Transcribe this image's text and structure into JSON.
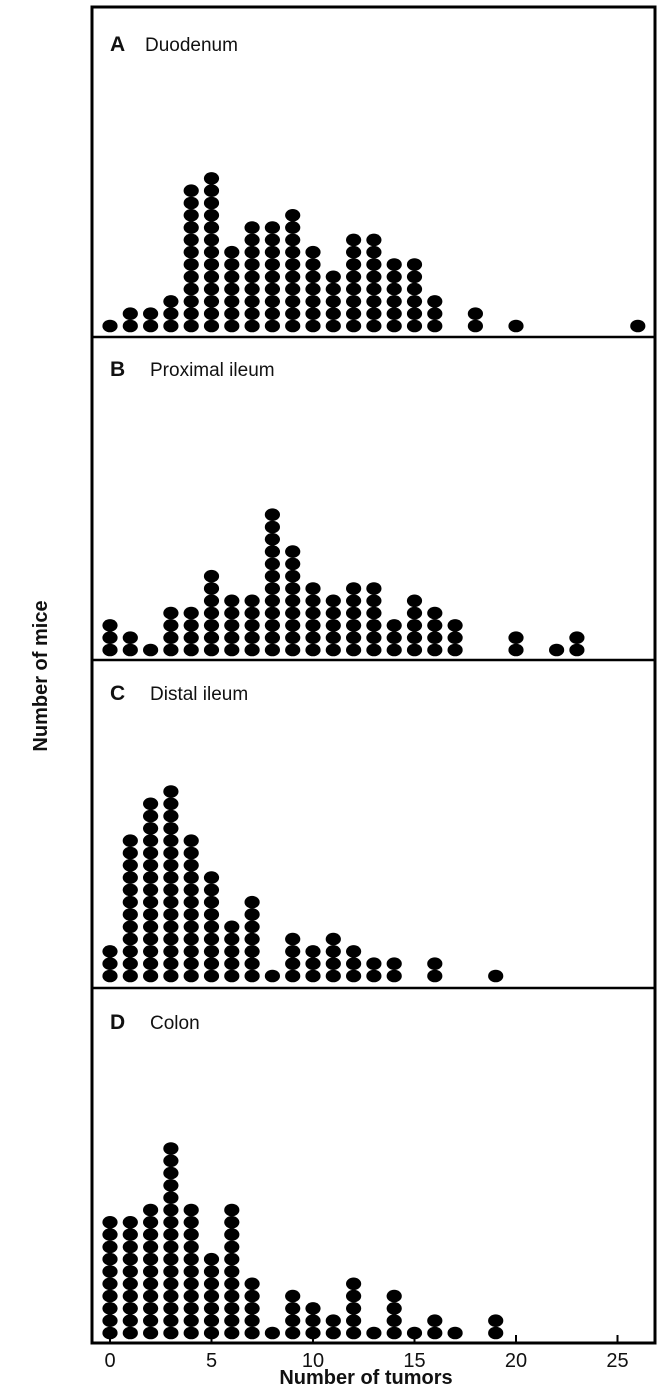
{
  "chart_data": {
    "type": "scatter",
    "subtype": "dot-histogram",
    "xlabel": "Number of tumors",
    "ylabel": "Number of mice",
    "xlim": [
      -1,
      27
    ],
    "xticks": [
      0,
      5,
      10,
      15,
      20,
      25
    ],
    "ink_color": "#000000",
    "panels": [
      {
        "letter": "A",
        "title": "Duodenum",
        "counts": [
          {
            "x": 0,
            "n": 1
          },
          {
            "x": 1,
            "n": 2
          },
          {
            "x": 2,
            "n": 2
          },
          {
            "x": 3,
            "n": 3
          },
          {
            "x": 4,
            "n": 12
          },
          {
            "x": 5,
            "n": 13
          },
          {
            "x": 6,
            "n": 7
          },
          {
            "x": 7,
            "n": 9
          },
          {
            "x": 8,
            "n": 9
          },
          {
            "x": 9,
            "n": 10
          },
          {
            "x": 10,
            "n": 7
          },
          {
            "x": 11,
            "n": 5
          },
          {
            "x": 12,
            "n": 8
          },
          {
            "x": 13,
            "n": 8
          },
          {
            "x": 14,
            "n": 6
          },
          {
            "x": 15,
            "n": 6
          },
          {
            "x": 16,
            "n": 3
          },
          {
            "x": 18,
            "n": 2
          },
          {
            "x": 20,
            "n": 1
          },
          {
            "x": 26,
            "n": 1
          }
        ]
      },
      {
        "letter": "B",
        "title": "Proximal ileum",
        "counts": [
          {
            "x": 0,
            "n": 3
          },
          {
            "x": 1,
            "n": 2
          },
          {
            "x": 2,
            "n": 1
          },
          {
            "x": 3,
            "n": 4
          },
          {
            "x": 4,
            "n": 4
          },
          {
            "x": 5,
            "n": 7
          },
          {
            "x": 6,
            "n": 5
          },
          {
            "x": 7,
            "n": 5
          },
          {
            "x": 8,
            "n": 12
          },
          {
            "x": 9,
            "n": 9
          },
          {
            "x": 10,
            "n": 6
          },
          {
            "x": 11,
            "n": 5
          },
          {
            "x": 12,
            "n": 6
          },
          {
            "x": 13,
            "n": 6
          },
          {
            "x": 14,
            "n": 3
          },
          {
            "x": 15,
            "n": 5
          },
          {
            "x": 16,
            "n": 4
          },
          {
            "x": 17,
            "n": 3
          },
          {
            "x": 20,
            "n": 2
          },
          {
            "x": 22,
            "n": 1
          },
          {
            "x": 23,
            "n": 2
          }
        ]
      },
      {
        "letter": "C",
        "title": "Distal ileum",
        "counts": [
          {
            "x": 0,
            "n": 3
          },
          {
            "x": 1,
            "n": 12
          },
          {
            "x": 2,
            "n": 15
          },
          {
            "x": 3,
            "n": 16
          },
          {
            "x": 4,
            "n": 12
          },
          {
            "x": 5,
            "n": 9
          },
          {
            "x": 6,
            "n": 5
          },
          {
            "x": 7,
            "n": 7
          },
          {
            "x": 8,
            "n": 1
          },
          {
            "x": 9,
            "n": 4
          },
          {
            "x": 10,
            "n": 3
          },
          {
            "x": 11,
            "n": 4
          },
          {
            "x": 12,
            "n": 3
          },
          {
            "x": 13,
            "n": 2
          },
          {
            "x": 14,
            "n": 2
          },
          {
            "x": 16,
            "n": 2
          },
          {
            "x": 19,
            "n": 1
          }
        ]
      },
      {
        "letter": "D",
        "title": "Colon",
        "counts": [
          {
            "x": 0,
            "n": 10
          },
          {
            "x": 1,
            "n": 10
          },
          {
            "x": 2,
            "n": 11
          },
          {
            "x": 3,
            "n": 16
          },
          {
            "x": 4,
            "n": 11
          },
          {
            "x": 5,
            "n": 7
          },
          {
            "x": 6,
            "n": 11
          },
          {
            "x": 7,
            "n": 5
          },
          {
            "x": 8,
            "n": 1
          },
          {
            "x": 9,
            "n": 4
          },
          {
            "x": 10,
            "n": 3
          },
          {
            "x": 11,
            "n": 2
          },
          {
            "x": 12,
            "n": 5
          },
          {
            "x": 13,
            "n": 1
          },
          {
            "x": 14,
            "n": 4
          },
          {
            "x": 15,
            "n": 1
          },
          {
            "x": 16,
            "n": 2
          },
          {
            "x": 17,
            "n": 1
          },
          {
            "x": 19,
            "n": 2
          }
        ]
      }
    ]
  }
}
